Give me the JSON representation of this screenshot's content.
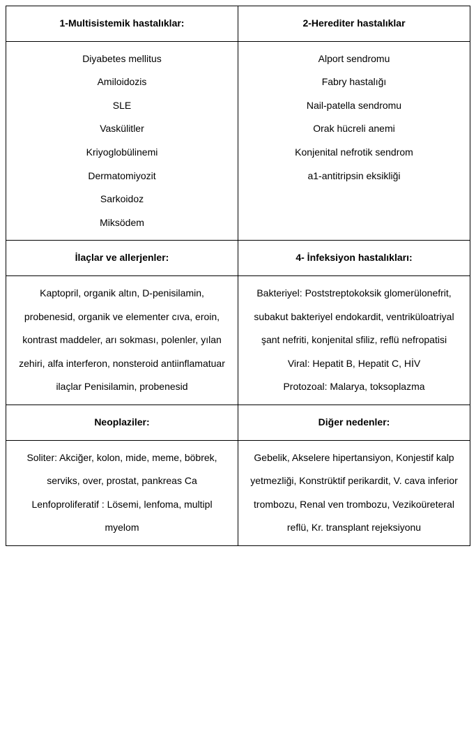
{
  "table": {
    "cols": 2,
    "sections": [
      {
        "headers": [
          "1-Multisistemik hastalıklar:",
          "2-Herediter hastalıklar"
        ],
        "bodies": [
          {
            "items": [
              "Diyabetes mellitus",
              "Amiloidozis",
              "SLE",
              "Vaskülitler",
              "Kriyoglobülinemi",
              "Dermatomiyozit",
              "Sarkoidoz",
              "Miksödem"
            ]
          },
          {
            "items": [
              "Alport sendromu",
              "Fabry hastalığı",
              "Nail-patella sendromu",
              "Orak hücreli anemi",
              "Konjenital nefrotik sendrom",
              "a1-antitripsin eksikliği"
            ]
          }
        ]
      },
      {
        "headers": [
          "İlaçlar ve allerjenler:",
          "4- İnfeksiyon hastalıkları:"
        ],
        "bodies": [
          {
            "items": [
              "Kaptopril, organik altın, D-penisilamin, probenesid, organik ve elementer cıva, eroin, kontrast maddeler, arı sokması, polenler, yılan zehiri, alfa interferon, nonsteroid antiinflamatuar ilaçlar Penisilamin, probenesid"
            ]
          },
          {
            "items": [
              "Bakteriyel: Poststreptokoksik glomerülonefrit, subakut bakteriyel endokardit, ventriküloatriyal şant nefriti, konjenital sfiliz, reflü nefropatisi",
              "Viral: Hepatit B, Hepatit C, HİV",
              "Protozoal: Malarya, toksoplazma"
            ]
          }
        ]
      },
      {
        "headers": [
          "Neoplaziler:",
          "Diğer nedenler:"
        ],
        "bodies": [
          {
            "items": [
              "Soliter: Akciğer, kolon, mide, meme, böbrek, serviks, over, prostat, pankreas Ca",
              "Lenfoproliferatif : Lösemi, lenfoma, multipl myelom"
            ]
          },
          {
            "items": [
              "Gebelik, Akselere hipertansiyon, Konjestif kalp yetmezliği, Konstrüktif perikardit, V. cava inferior trombozu, Renal ven trombozu, Vezikoüreteral reflü, Kr. transplant rejeksiyonu"
            ]
          }
        ]
      }
    ]
  }
}
